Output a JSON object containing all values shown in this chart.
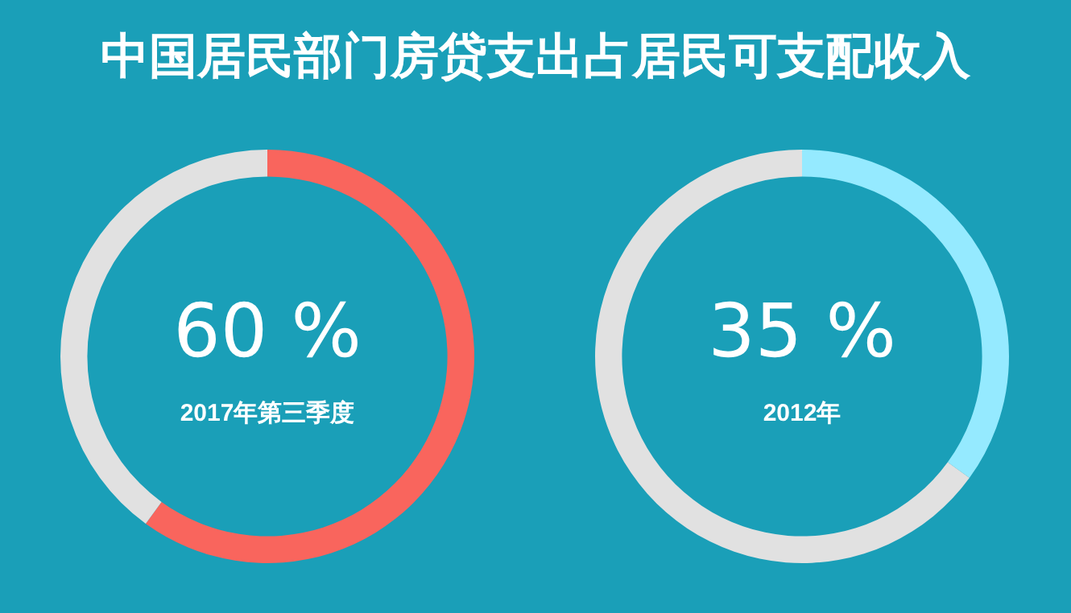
{
  "chart_data": [
    {
      "type": "donut",
      "title": "中国居民部门房贷支出占居民可支配收入",
      "categories": [
        null,
        null
      ],
      "values": [
        60,
        40
      ],
      "colors": [
        "#f9655d",
        "#e1e1e1"
      ],
      "value_labels": [
        "60 %",
        null
      ],
      "annotations": [
        "2017年第三季度"
      ],
      "legend": false
    },
    {
      "type": "donut",
      "categories": [
        null,
        null
      ],
      "values": [
        35,
        65
      ],
      "colors": [
        "#95eaff",
        "#e1e1e1"
      ],
      "value_labels": [
        "35 %",
        null
      ],
      "annotations": [
        "2012年"
      ],
      "legend": false
    }
  ]
}
